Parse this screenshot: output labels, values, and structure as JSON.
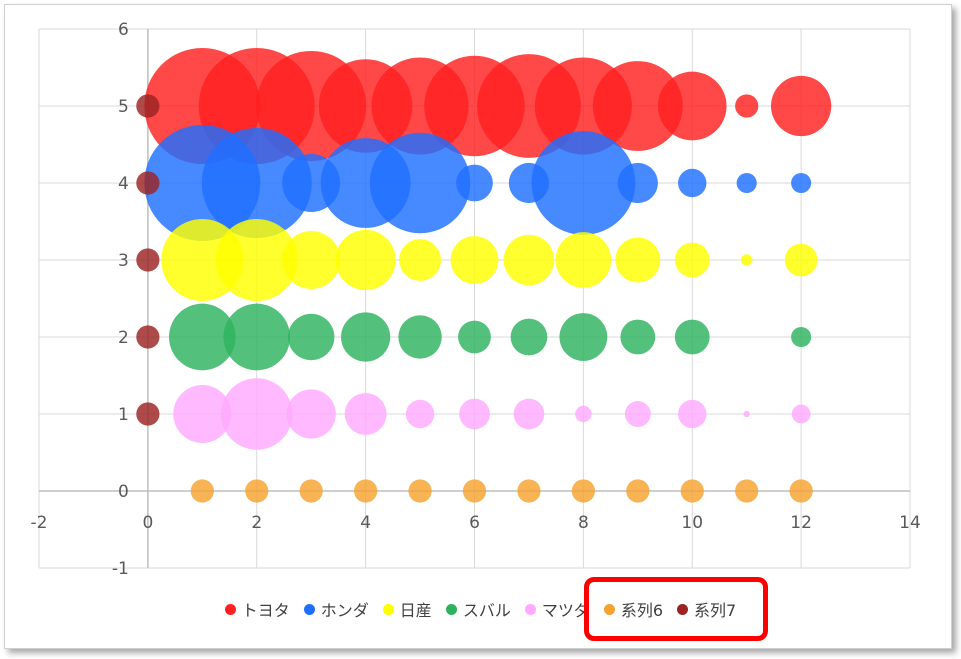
{
  "chart_data": {
    "type": "bubble",
    "xlim": [
      -2,
      14
    ],
    "ylim": [
      -1,
      6
    ],
    "x_ticks": [
      "-2",
      "0",
      "2",
      "4",
      "6",
      "8",
      "10",
      "12",
      "14"
    ],
    "y_ticks": [
      "-1",
      "0",
      "1",
      "2",
      "3",
      "4",
      "5",
      "6"
    ],
    "grid": true,
    "legend_position": "bottom",
    "series": [
      {
        "name": "トヨタ",
        "color": "#ff2020",
        "y": 5,
        "points": [
          {
            "x": 1,
            "size": 100
          },
          {
            "x": 2,
            "size": 100
          },
          {
            "x": 3,
            "size": 90
          },
          {
            "x": 4,
            "size": 65
          },
          {
            "x": 5,
            "size": 70
          },
          {
            "x": 6,
            "size": 75
          },
          {
            "x": 7,
            "size": 80
          },
          {
            "x": 8,
            "size": 70
          },
          {
            "x": 9,
            "size": 60
          },
          {
            "x": 10,
            "size": 35
          },
          {
            "x": 11,
            "size": 4
          },
          {
            "x": 12,
            "size": 27
          }
        ]
      },
      {
        "name": "ホンダ",
        "color": "#1f6fff",
        "y": 4,
        "points": [
          {
            "x": 1,
            "size": 100
          },
          {
            "x": 2,
            "size": 90
          },
          {
            "x": 3,
            "size": 25
          },
          {
            "x": 4,
            "size": 60
          },
          {
            "x": 5,
            "size": 75
          },
          {
            "x": 6,
            "size": 10
          },
          {
            "x": 7,
            "size": 12
          },
          {
            "x": 8,
            "size": 80
          },
          {
            "x": 9,
            "size": 12
          },
          {
            "x": 10,
            "size": 6
          },
          {
            "x": 11,
            "size": 3
          },
          {
            "x": 12,
            "size": 3
          }
        ]
      },
      {
        "name": "日産",
        "color": "#ffff00",
        "y": 3,
        "points": [
          {
            "x": 1,
            "size": 50
          },
          {
            "x": 2,
            "size": 50
          },
          {
            "x": 3,
            "size": 25
          },
          {
            "x": 4,
            "size": 27
          },
          {
            "x": 5,
            "size": 13
          },
          {
            "x": 6,
            "size": 17
          },
          {
            "x": 7,
            "size": 19
          },
          {
            "x": 8,
            "size": 23
          },
          {
            "x": 9,
            "size": 15
          },
          {
            "x": 10,
            "size": 9
          },
          {
            "x": 11,
            "size": 1
          },
          {
            "x": 12,
            "size": 8
          }
        ]
      },
      {
        "name": "スバル",
        "color": "#2db35f",
        "y": 2,
        "points": [
          {
            "x": 1,
            "size": 33
          },
          {
            "x": 2,
            "size": 33
          },
          {
            "x": 3,
            "size": 16
          },
          {
            "x": 4,
            "size": 18
          },
          {
            "x": 5,
            "size": 14
          },
          {
            "x": 6,
            "size": 8
          },
          {
            "x": 7,
            "size": 10
          },
          {
            "x": 8,
            "size": 17
          },
          {
            "x": 9,
            "size": 9
          },
          {
            "x": 10,
            "size": 9
          },
          {
            "x": 11,
            "size": 0
          },
          {
            "x": 12,
            "size": 3
          }
        ]
      },
      {
        "name": "マツダ",
        "color": "#ffaaff",
        "y": 1,
        "points": [
          {
            "x": 1,
            "size": 25
          },
          {
            "x": 2,
            "size": 38
          },
          {
            "x": 3,
            "size": 18
          },
          {
            "x": 4,
            "size": 13
          },
          {
            "x": 5,
            "size": 6
          },
          {
            "x": 6,
            "size": 7
          },
          {
            "x": 7,
            "size": 7
          },
          {
            "x": 8,
            "size": 2
          },
          {
            "x": 9,
            "size": 5
          },
          {
            "x": 10,
            "size": 6
          },
          {
            "x": 11,
            "size": 0.3
          },
          {
            "x": 12,
            "size": 2.6
          }
        ]
      },
      {
        "name": "系列6",
        "color": "#f5a22e",
        "y": 0,
        "points": [
          {
            "x": 1,
            "size": 4
          },
          {
            "x": 2,
            "size": 4
          },
          {
            "x": 3,
            "size": 4
          },
          {
            "x": 4,
            "size": 4
          },
          {
            "x": 5,
            "size": 4
          },
          {
            "x": 6,
            "size": 4
          },
          {
            "x": 7,
            "size": 4
          },
          {
            "x": 8,
            "size": 4
          },
          {
            "x": 9,
            "size": 4
          },
          {
            "x": 10,
            "size": 4
          },
          {
            "x": 11,
            "size": 4
          },
          {
            "x": 12,
            "size": 4
          }
        ]
      },
      {
        "name": "系列7",
        "color": "#9b2323",
        "points": [
          {
            "x": 0,
            "y": 1,
            "size": 4
          },
          {
            "x": 0,
            "y": 2,
            "size": 4
          },
          {
            "x": 0,
            "y": 3,
            "size": 4
          },
          {
            "x": 0,
            "y": 4,
            "size": 4
          },
          {
            "x": 0,
            "y": 5,
            "size": 4
          }
        ]
      }
    ],
    "annotation": {
      "type": "highlight-box",
      "target": "legend entries 系列6 and 系列7",
      "color": "#ff0000"
    }
  }
}
